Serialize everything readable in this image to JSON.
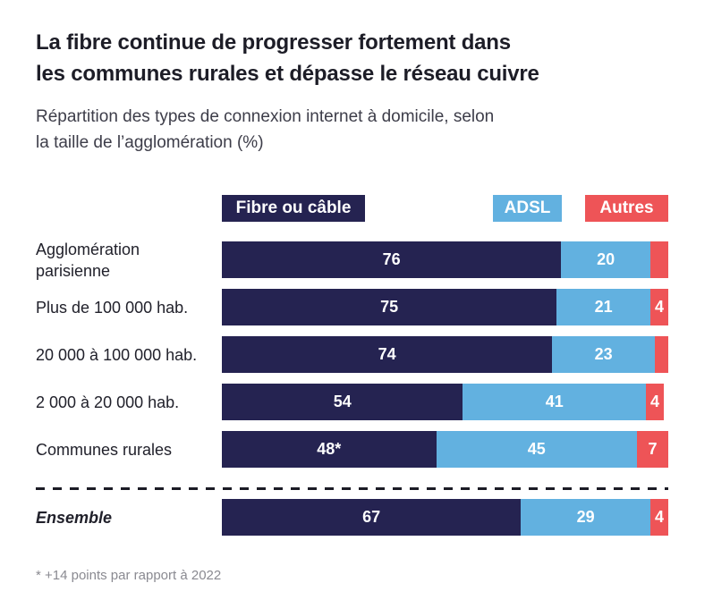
{
  "header": {
    "title_line1": "La fibre continue de progresser fortement dans",
    "title_line2": "les communes rurales et dépasse le réseau cuivre",
    "subtitle_line1": "Répartition des types de connexion internet à domicile, selon",
    "subtitle_line2": "la taille de l’agglomération (%)"
  },
  "legend": [
    {
      "label": "Fibre ou câble",
      "color": "#252351"
    },
    {
      "label": "ADSL",
      "color": "#62b1e0"
    },
    {
      "label": "Autres",
      "color": "#ee5457"
    }
  ],
  "chart_data": {
    "type": "bar",
    "orientation": "horizontal",
    "stacked": true,
    "unit": "%",
    "xlim": [
      0,
      100
    ],
    "grid": false,
    "legend_position": "top",
    "series_names": [
      "Fibre ou câble",
      "ADSL",
      "Autres"
    ],
    "colors": {
      "fibre": "#252351",
      "adsl": "#62b1e0",
      "autres": "#ee5457"
    },
    "categories": [
      "Agglomération parisienne",
      "Plus de 100 000 hab.",
      "20 000 à 100 000 hab.",
      "2 000 à 20 000 hab.",
      "Communes rurales",
      "Ensemble"
    ],
    "rows": [
      {
        "category": "Agglomération parisienne",
        "fibre": 76,
        "adsl": 20,
        "autres": 4,
        "fibre_label": "76",
        "adsl_label": "20",
        "autres_label": ""
      },
      {
        "category": "Plus de 100 000 hab.",
        "fibre": 75,
        "adsl": 21,
        "autres": 4,
        "fibre_label": "75",
        "adsl_label": "21",
        "autres_label": "4"
      },
      {
        "category": "20 000 à 100 000 hab.",
        "fibre": 74,
        "adsl": 23,
        "autres": 3,
        "fibre_label": "74",
        "adsl_label": "23",
        "autres_label": ""
      },
      {
        "category": "2 000 à 20 000 hab.",
        "fibre": 54,
        "adsl": 41,
        "autres": 4,
        "fibre_label": "54",
        "adsl_label": "41",
        "autres_label": "4"
      },
      {
        "category": "Communes rurales",
        "fibre": 48,
        "adsl": 45,
        "autres": 7,
        "fibre_label": "48*",
        "adsl_label": "45",
        "autres_label": "7"
      },
      {
        "category": "Ensemble",
        "fibre": 67,
        "adsl": 29,
        "autres": 4,
        "fibre_label": "67",
        "adsl_label": "29",
        "autres_label": "4"
      }
    ]
  },
  "footnote": "* +14 points par rapport à 2022"
}
